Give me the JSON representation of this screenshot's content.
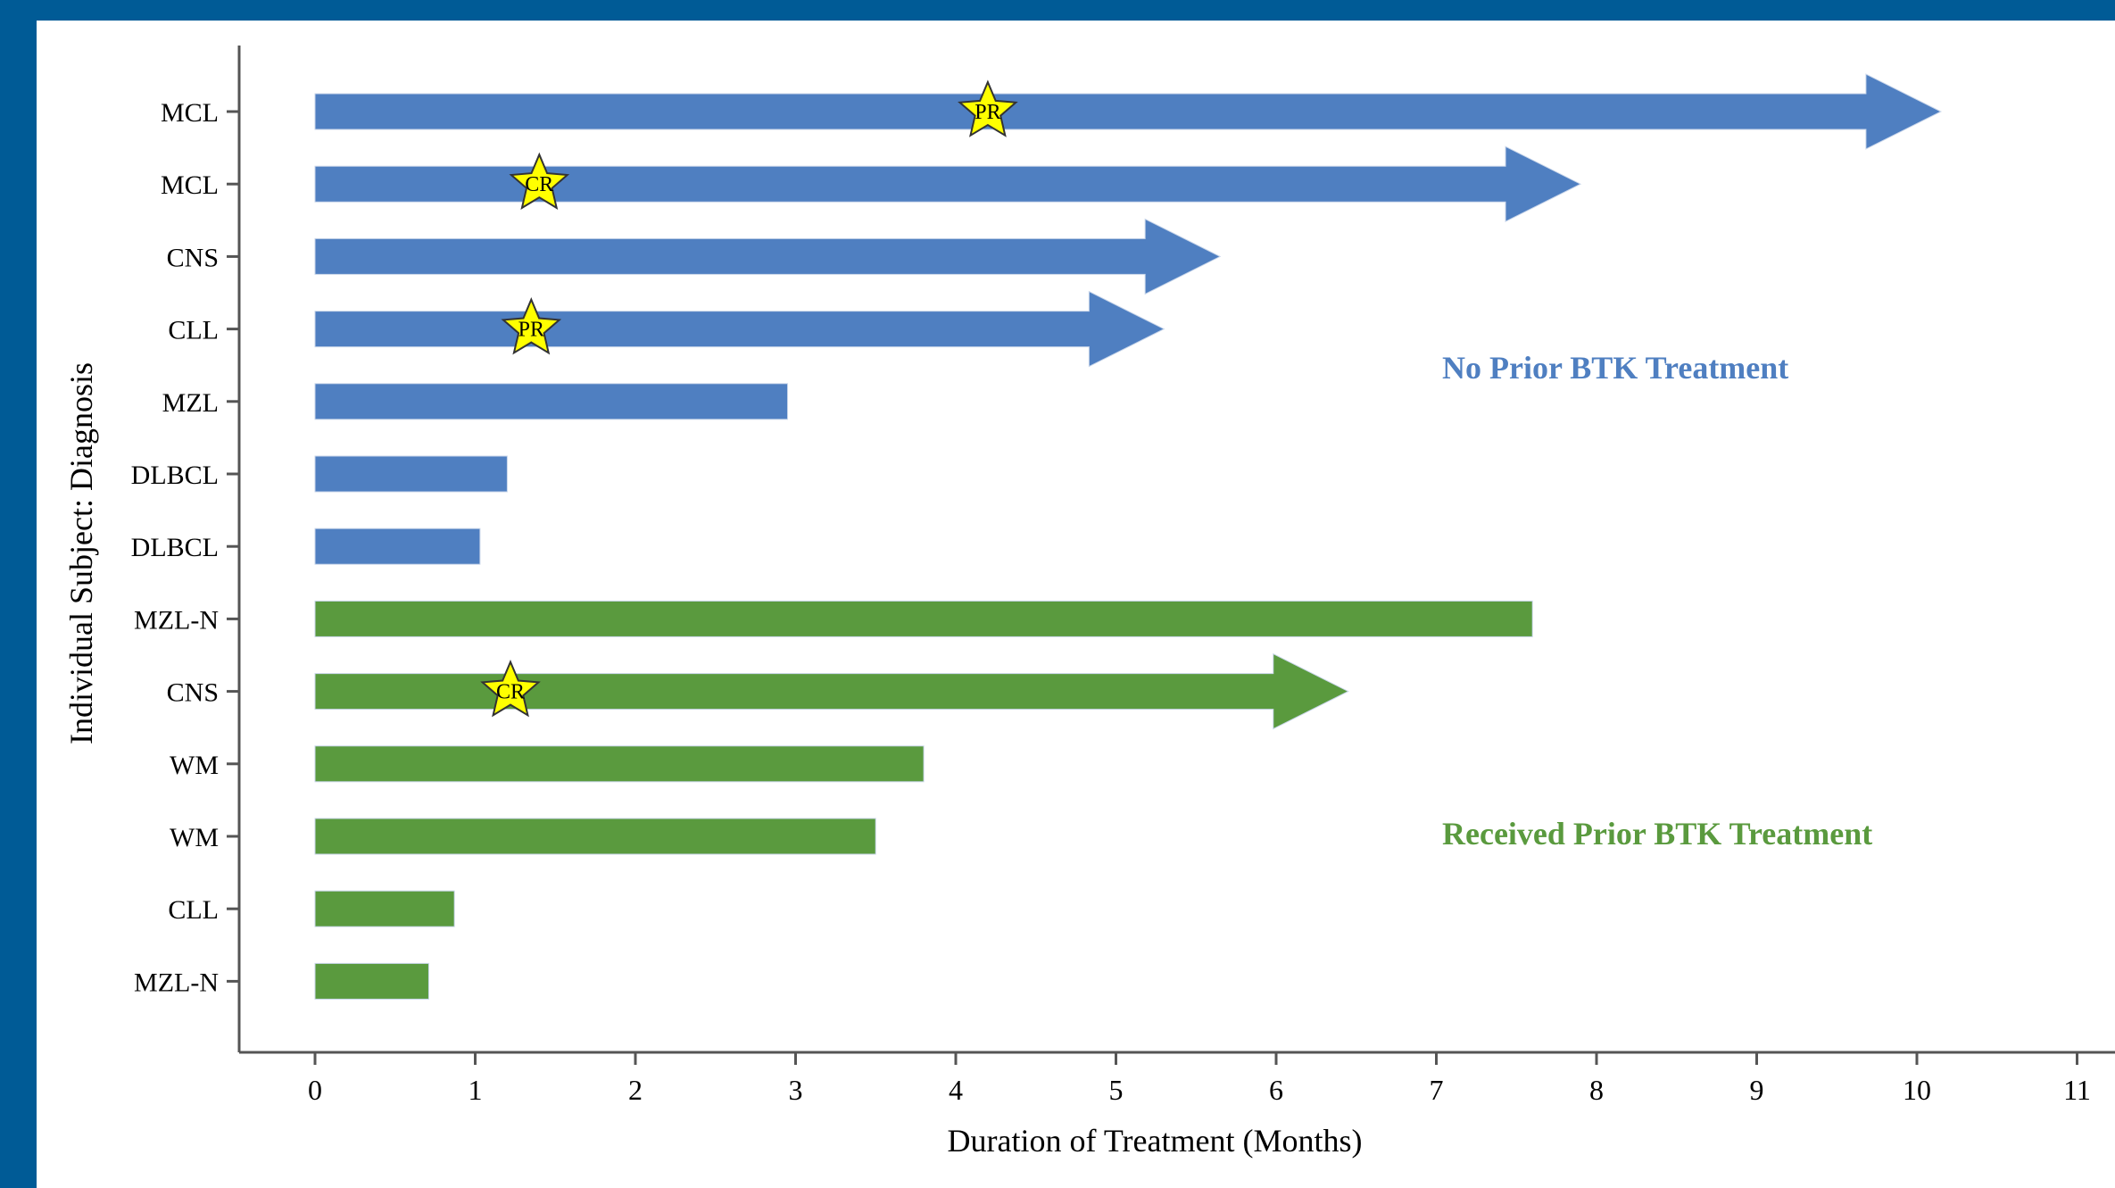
{
  "chart_data": {
    "type": "bar",
    "orientation": "horizontal",
    "title": "",
    "xlabel": "Duration of Treatment (Months)",
    "ylabel": "Individual Subject: Diagnosis",
    "xlim": [
      0,
      11
    ],
    "xticks": [
      "0",
      "1",
      "2",
      "3",
      "4",
      "5",
      "6",
      "7",
      "8",
      "9",
      "10",
      "11"
    ],
    "grid": false,
    "colors": {
      "No Prior BTK Treatment": "#4f7fc1",
      "Received Prior BTK Treatment": "#5a9a3e",
      "star_fill": "#ffff00"
    },
    "annotations": [
      "No Prior BTK Treatment",
      "Received Prior BTK Treatment"
    ],
    "categories": [
      "MCL",
      "MCL",
      "CNS",
      "CLL",
      "MZL",
      "DLBCL",
      "DLBCL",
      "MZL-N",
      "CNS",
      "WM",
      "WM",
      "CLL",
      "MZL-N"
    ],
    "subjects": [
      {
        "diagnosis": "MCL",
        "group": "No Prior BTK Treatment",
        "duration": 10.15,
        "ongoing": true,
        "response": "PR",
        "response_month": 4.2
      },
      {
        "diagnosis": "MCL",
        "group": "No Prior BTK Treatment",
        "duration": 7.9,
        "ongoing": true,
        "response": "CR",
        "response_month": 1.4
      },
      {
        "diagnosis": "CNS",
        "group": "No Prior BTK Treatment",
        "duration": 5.65,
        "ongoing": true,
        "response": "",
        "response_month": null
      },
      {
        "diagnosis": "CLL",
        "group": "No Prior BTK Treatment",
        "duration": 5.3,
        "ongoing": true,
        "response": "PR",
        "response_month": 1.35
      },
      {
        "diagnosis": "MZL",
        "group": "No Prior BTK Treatment",
        "duration": 2.95,
        "ongoing": false,
        "response": "",
        "response_month": null
      },
      {
        "diagnosis": "DLBCL",
        "group": "No Prior BTK Treatment",
        "duration": 1.2,
        "ongoing": false,
        "response": "",
        "response_month": null
      },
      {
        "diagnosis": "DLBCL",
        "group": "No Prior BTK Treatment",
        "duration": 1.03,
        "ongoing": false,
        "response": "",
        "response_month": null
      },
      {
        "diagnosis": "MZL-N",
        "group": "Received Prior BTK Treatment",
        "duration": 7.6,
        "ongoing": false,
        "response": "",
        "response_month": null
      },
      {
        "diagnosis": "CNS",
        "group": "Received Prior BTK Treatment",
        "duration": 6.45,
        "ongoing": true,
        "response": "CR",
        "response_month": 1.22
      },
      {
        "diagnosis": "WM",
        "group": "Received Prior BTK Treatment",
        "duration": 3.8,
        "ongoing": false,
        "response": "",
        "response_month": null
      },
      {
        "diagnosis": "WM",
        "group": "Received Prior BTK Treatment",
        "duration": 3.5,
        "ongoing": false,
        "response": "",
        "response_month": null
      },
      {
        "diagnosis": "CLL",
        "group": "Received Prior BTK Treatment",
        "duration": 0.87,
        "ongoing": false,
        "response": "",
        "response_month": null
      },
      {
        "diagnosis": "MZL-N",
        "group": "Received Prior BTK Treatment",
        "duration": 0.71,
        "ongoing": false,
        "response": "",
        "response_month": null
      }
    ]
  }
}
